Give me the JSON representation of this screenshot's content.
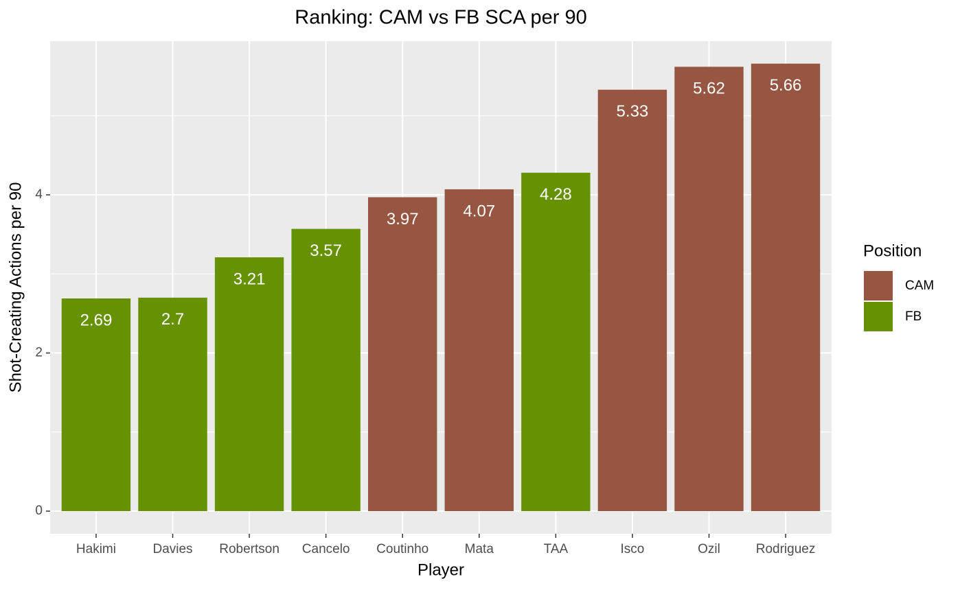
{
  "chart_data": {
    "type": "bar",
    "title": "Ranking: CAM vs FB SCA per 90",
    "x_label": "Player",
    "y_label": "Shot-Creating Actions per 90",
    "categories": [
      "Hakimi",
      "Davies",
      "Robertson",
      "Cancelo",
      "Coutinho",
      "Mata",
      "TAA",
      "Isco",
      "Ozil",
      "Rodriguez"
    ],
    "series": [
      {
        "name": "CAM",
        "color": "#965641",
        "values": [
          null,
          null,
          null,
          null,
          3.97,
          4.07,
          null,
          5.33,
          5.62,
          5.66
        ]
      },
      {
        "name": "FB",
        "color": "#669100",
        "values": [
          2.69,
          2.7,
          3.21,
          3.57,
          null,
          null,
          4.28,
          null,
          null,
          null
        ]
      }
    ],
    "ylim": [
      -0.286,
      5.944
    ],
    "yticks": [
      0,
      2,
      4
    ],
    "minor_yticks": [
      1,
      3,
      5
    ],
    "grid": true,
    "legend_title": "Position",
    "legend": "right"
  }
}
